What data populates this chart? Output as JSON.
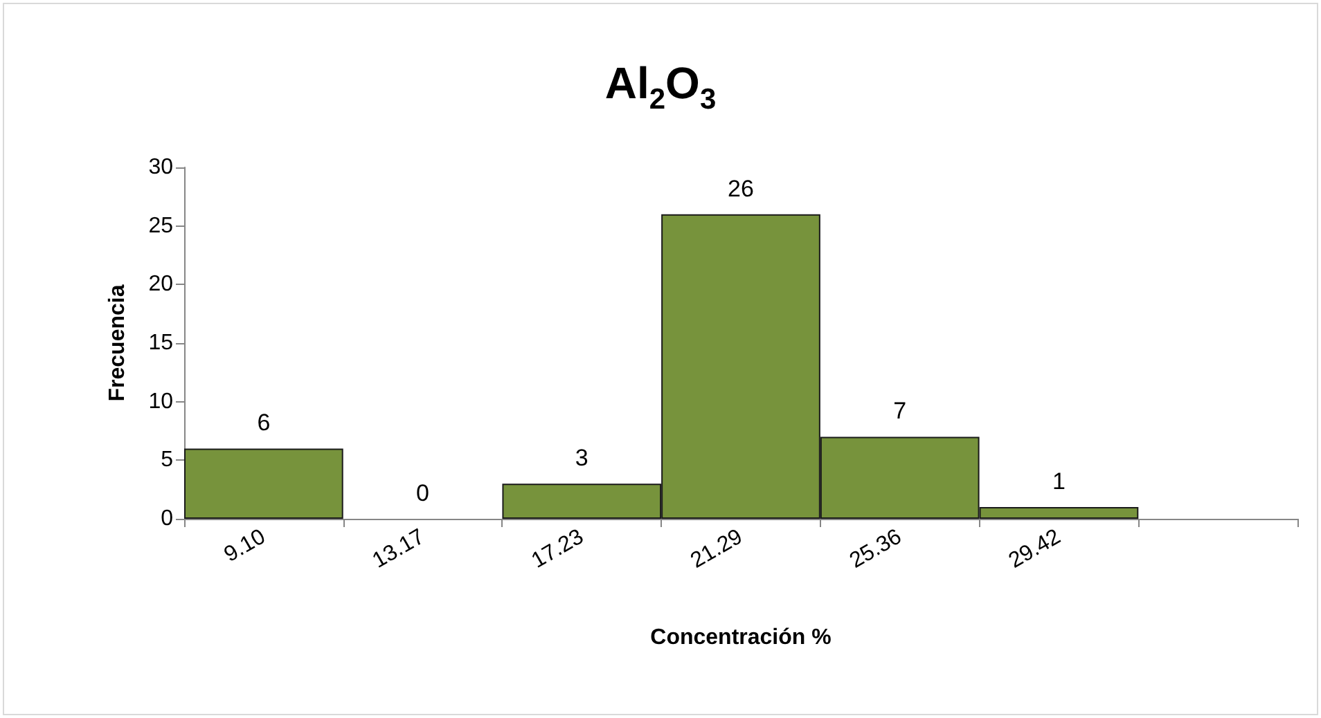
{
  "chart_data": {
    "type": "bar",
    "title": "Al$_{2}$O$_{3}$",
    "xlabel": "Concentración %",
    "ylabel": "Frecuencia",
    "categories": [
      "9.10",
      "13.17",
      "17.23",
      "21.29",
      "25.36",
      "29.42",
      null
    ],
    "values": [
      6,
      0,
      3,
      26,
      7,
      1,
      null
    ],
    "color": "#77933c",
    "ylim": [
      0,
      30
    ],
    "yticks": [
      0,
      5,
      10,
      15,
      20,
      25,
      30
    ],
    "grid": false,
    "data_labels": true
  }
}
